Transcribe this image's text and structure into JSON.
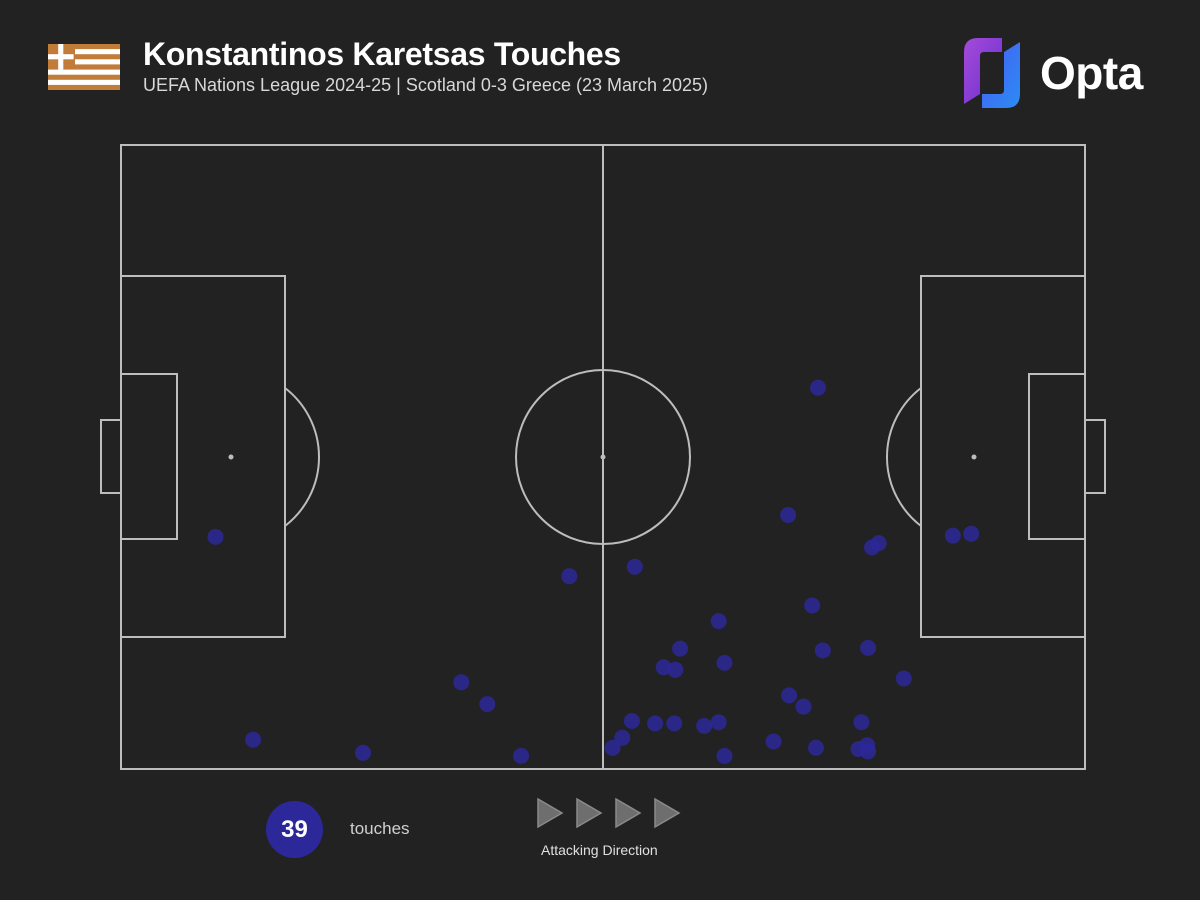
{
  "header": {
    "title": "Konstantinos Karetsas Touches",
    "subtitle": "UEFA Nations League 2024-25 | Scotland 0-3 Greece (23 March 2025)",
    "brand": "Opta",
    "flag": "greece-flag-icon"
  },
  "colors": {
    "background": "#222222",
    "pitch_lines": "#bdbdbd",
    "touch_marker": "#2c2899",
    "flag": "#c27c3a"
  },
  "legend": {
    "count": "39",
    "count_label": "touches",
    "direction_label": "Attacking Direction",
    "direction_icon": "play-arrow-icon"
  },
  "chart_data": {
    "type": "scatter",
    "description_units": "pitch length 0-100 (left to right, attacking direction), width 0-100 (top to bottom)",
    "xlim": [
      0,
      100
    ],
    "ylim": [
      0,
      100
    ],
    "points": [
      {
        "x": 9.8,
        "y": 62.8
      },
      {
        "x": 13.7,
        "y": 95.3
      },
      {
        "x": 25.1,
        "y": 97.4
      },
      {
        "x": 35.3,
        "y": 86.1
      },
      {
        "x": 38.0,
        "y": 89.6
      },
      {
        "x": 41.5,
        "y": 97.9
      },
      {
        "x": 46.5,
        "y": 69.1
      },
      {
        "x": 53.3,
        "y": 67.6
      },
      {
        "x": 51.0,
        "y": 96.6
      },
      {
        "x": 52.0,
        "y": 95.0
      },
      {
        "x": 53.0,
        "y": 92.3
      },
      {
        "x": 55.4,
        "y": 92.7
      },
      {
        "x": 57.4,
        "y": 92.7
      },
      {
        "x": 56.3,
        "y": 83.7
      },
      {
        "x": 57.5,
        "y": 84.1
      },
      {
        "x": 58.0,
        "y": 80.7
      },
      {
        "x": 60.5,
        "y": 93.1
      },
      {
        "x": 62.0,
        "y": 92.5
      },
      {
        "x": 62.6,
        "y": 97.9
      },
      {
        "x": 62.0,
        "y": 76.3
      },
      {
        "x": 62.6,
        "y": 83.0
      },
      {
        "x": 67.7,
        "y": 95.6
      },
      {
        "x": 69.2,
        "y": 59.3
      },
      {
        "x": 69.3,
        "y": 88.2
      },
      {
        "x": 70.8,
        "y": 90.0
      },
      {
        "x": 71.7,
        "y": 73.8
      },
      {
        "x": 72.1,
        "y": 96.6
      },
      {
        "x": 72.3,
        "y": 38.9
      },
      {
        "x": 72.8,
        "y": 81.0
      },
      {
        "x": 76.5,
        "y": 96.8
      },
      {
        "x": 76.8,
        "y": 92.5
      },
      {
        "x": 77.4,
        "y": 96.2
      },
      {
        "x": 77.5,
        "y": 97.2
      },
      {
        "x": 77.5,
        "y": 80.6
      },
      {
        "x": 77.9,
        "y": 64.5
      },
      {
        "x": 78.6,
        "y": 63.8
      },
      {
        "x": 81.2,
        "y": 85.5
      },
      {
        "x": 86.3,
        "y": 62.6
      },
      {
        "x": 88.2,
        "y": 62.3
      }
    ]
  }
}
